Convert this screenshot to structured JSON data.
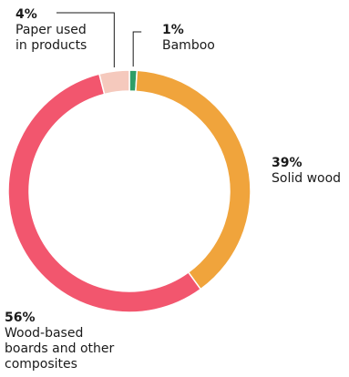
{
  "chart_data": {
    "type": "pie",
    "variant": "donut",
    "legend": "none",
    "slices": [
      {
        "percent": 1,
        "value_label": "1%",
        "label": "Bamboo",
        "color": "#2e9e67"
      },
      {
        "percent": 39,
        "value_label": "39%",
        "label": "Solid wood",
        "color": "#f0a43c"
      },
      {
        "percent": 56,
        "value_label": "56%",
        "label": "Wood-based\nboards and other\ncomposites",
        "color": "#f2566e"
      },
      {
        "percent": 4,
        "value_label": "4%",
        "label": "Paper used\nin products",
        "color": "#f5c9bd"
      }
    ]
  }
}
